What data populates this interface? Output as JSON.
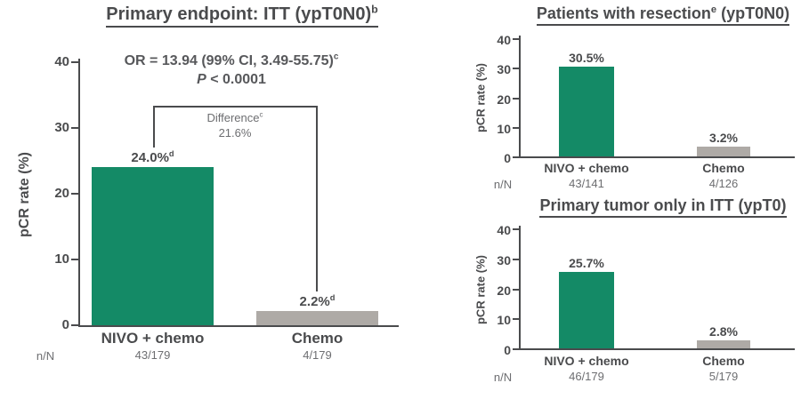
{
  "colors": {
    "green": "#148a66",
    "gray": "#aeaaa6",
    "text_dark": "#4a4b4d",
    "text_muted": "#6d6e71"
  },
  "chart_data": [
    {
      "type": "bar",
      "title_pre": "Primary endpoint: ITT (ypT0N0)",
      "title_sup": "b",
      "title_post": "",
      "or_line": "OR = 13.94 (99% CI, 3.49-55.75)",
      "or_sup": "c",
      "p_italic": "P",
      "p_rest": " < 0.0001",
      "difference_label": "Difference",
      "difference_sup": "c",
      "difference_value": "21.6%",
      "ylabel": "pCR rate (%)",
      "ylim": [
        0,
        40
      ],
      "yticks": [
        "40",
        "30",
        "20",
        "10",
        "0"
      ],
      "nN_label": "n/N",
      "categories": [
        "NIVO + chemo",
        "Chemo"
      ],
      "bars": [
        {
          "label": "NIVO + chemo",
          "value": 24.0,
          "display": "24.0%",
          "display_sup": "d",
          "nN": "43/179",
          "color": "green"
        },
        {
          "label": "Chemo",
          "value": 2.2,
          "display": "2.2%",
          "display_sup": "d",
          "nN": "4/179",
          "color": "gray"
        }
      ]
    },
    {
      "type": "bar",
      "title_pre": "Patients with resection",
      "title_sup": "e",
      "title_post": " (ypT0N0)",
      "ylabel": "pCR rate (%)",
      "ylim": [
        0,
        40
      ],
      "yticks": [
        "40",
        "30",
        "20",
        "10",
        "0"
      ],
      "nN_label": "n/N",
      "categories": [
        "NIVO + chemo",
        "Chemo"
      ],
      "bars": [
        {
          "label": "NIVO + chemo",
          "value": 30.5,
          "display": "30.5%",
          "display_sup": "",
          "nN": "43/141",
          "color": "green"
        },
        {
          "label": "Chemo",
          "value": 3.2,
          "display": "3.2%",
          "display_sup": "",
          "nN": "4/126",
          "color": "gray"
        }
      ]
    },
    {
      "type": "bar",
      "title_pre": "Primary tumor only in ITT (ypT0)",
      "title_sup": "",
      "title_post": "",
      "ylabel": "pCR rate (%)",
      "ylim": [
        0,
        40
      ],
      "yticks": [
        "40",
        "30",
        "20",
        "10",
        "0"
      ],
      "nN_label": "n/N",
      "categories": [
        "NIVO + chemo",
        "Chemo"
      ],
      "bars": [
        {
          "label": "NIVO + chemo",
          "value": 25.7,
          "display": "25.7%",
          "display_sup": "",
          "nN": "46/179",
          "color": "green"
        },
        {
          "label": "Chemo",
          "value": 2.8,
          "display": "2.8%",
          "display_sup": "",
          "nN": "5/179",
          "color": "gray"
        }
      ]
    }
  ]
}
